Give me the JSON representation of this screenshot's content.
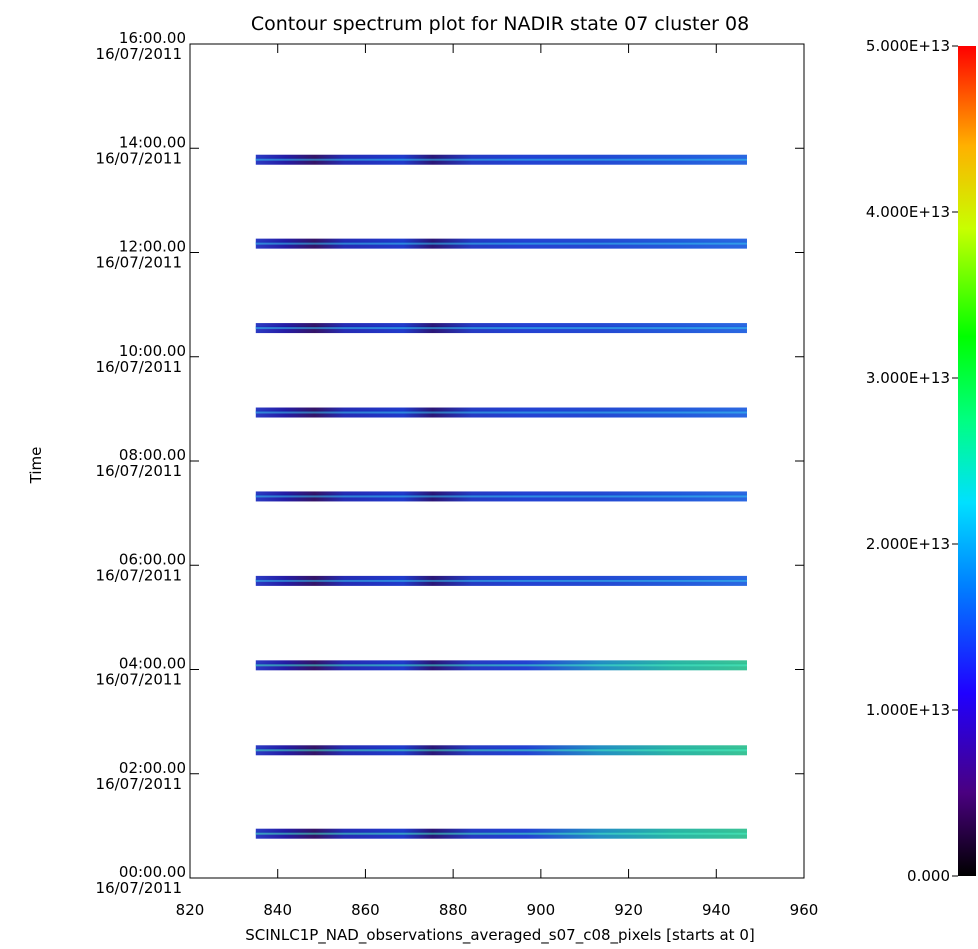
{
  "chart_data": {
    "type": "heatmap",
    "title": "Contour spectrum plot for NADIR state 07 cluster 08",
    "xlabel": "SCINLC1P_NAD_observations_averaged_s07_c08_pixels [starts at 0]",
    "ylabel": "Time",
    "xlim": [
      820,
      960
    ],
    "x_ticks": [
      "820",
      "840",
      "860",
      "880",
      "900",
      "920",
      "940",
      "960"
    ],
    "y_ticks": [
      {
        "time": "00:00.00",
        "date": "16/07/2011"
      },
      {
        "time": "02:00.00",
        "date": "16/07/2011"
      },
      {
        "time": "04:00.00",
        "date": "16/07/2011"
      },
      {
        "time": "06:00.00",
        "date": "16/07/2011"
      },
      {
        "time": "08:00.00",
        "date": "16/07/2011"
      },
      {
        "time": "10:00.00",
        "date": "16/07/2011"
      },
      {
        "time": "12:00.00",
        "date": "16/07/2011"
      },
      {
        "time": "14:00.00",
        "date": "16/07/2011"
      },
      {
        "time": "16:00.00",
        "date": "16/07/2011"
      }
    ],
    "ylim_hours": [
      0,
      16
    ],
    "pixel_range": [
      835,
      947
    ],
    "orbit_hours": [
      0.85,
      2.45,
      4.08,
      5.7,
      7.32,
      8.93,
      10.55,
      12.17,
      13.78
    ],
    "colorbar": {
      "min": 0,
      "max": 50000000000000.0,
      "ticks": [
        {
          "value": 0,
          "label": "0.000"
        },
        {
          "value": 10000000000000.0,
          "label": "1.000E+13"
        },
        {
          "value": 20000000000000.0,
          "label": "2.000E+13"
        },
        {
          "value": 30000000000000.0,
          "label": "3.000E+13"
        },
        {
          "value": 40000000000000.0,
          "label": "4.000E+13"
        },
        {
          "value": 50000000000000.0,
          "label": "5.000E+13"
        }
      ]
    },
    "grid": false,
    "colormap": "rainbow-black-to-red"
  }
}
